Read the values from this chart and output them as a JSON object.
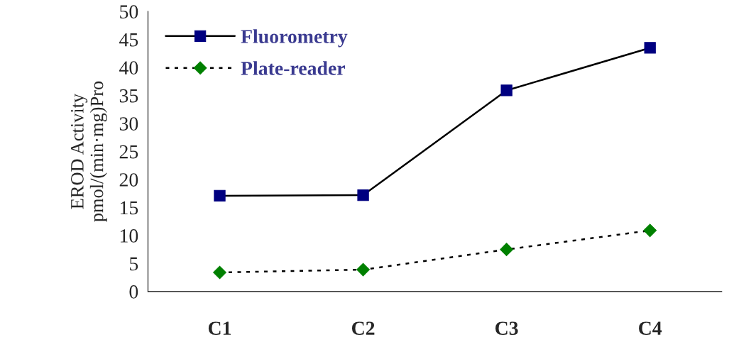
{
  "chart_data": {
    "type": "line",
    "ylabel": "EROD Activity\npmol/(min·mg)Pro",
    "categories": [
      "C1",
      "C2",
      "C3",
      "C4"
    ],
    "series": [
      {
        "name": "Fluorometry",
        "color": "#000080",
        "values": [
          17.1,
          17.2,
          35.9,
          43.5
        ],
        "marker": "square",
        "line_style": "solid"
      },
      {
        "name": "Plate-reader",
        "color": "#008000",
        "values": [
          3.4,
          3.9,
          7.5,
          10.9
        ],
        "marker": "diamond",
        "line_style": "dotted"
      }
    ],
    "ylim": [
      0,
      50
    ],
    "yticks": [
      0,
      5,
      10,
      15,
      20,
      25,
      30,
      35,
      40,
      45,
      50
    ],
    "grid": false,
    "legend": "top left"
  }
}
